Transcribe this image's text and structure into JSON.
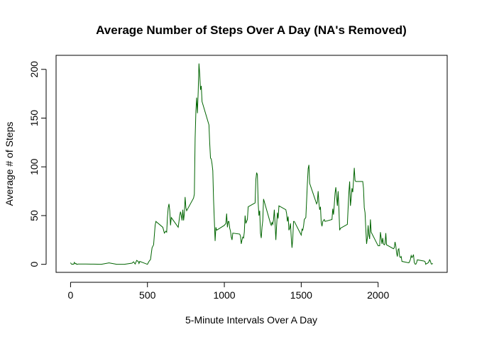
{
  "chart_data": {
    "type": "line",
    "title": "Average Number of Steps Over A Day  (NA's Removed)",
    "xlabel": "5-Minute Intervals Over A Day",
    "ylabel": "Average # of Steps",
    "x": [
      0,
      5,
      10,
      15,
      20,
      25,
      30,
      35,
      40,
      50,
      100,
      150,
      200,
      250,
      300,
      350,
      400,
      410,
      420,
      430,
      440,
      445,
      450,
      500,
      510,
      520,
      530,
      540,
      550,
      555,
      600,
      610,
      620,
      625,
      630,
      635,
      640,
      645,
      650,
      655,
      700,
      705,
      710,
      715,
      720,
      725,
      730,
      735,
      740,
      745,
      750,
      755,
      800,
      805,
      810,
      815,
      820,
      825,
      830,
      835,
      840,
      845,
      850,
      855,
      900,
      905,
      910,
      915,
      920,
      925,
      930,
      935,
      940,
      945,
      950,
      1000,
      1010,
      1015,
      1020,
      1025,
      1030,
      1035,
      1040,
      1045,
      1050,
      1055,
      1100,
      1105,
      1110,
      1115,
      1120,
      1125,
      1130,
      1135,
      1140,
      1145,
      1150,
      1155,
      1200,
      1205,
      1210,
      1215,
      1220,
      1225,
      1230,
      1235,
      1240,
      1245,
      1250,
      1255,
      1300,
      1305,
      1310,
      1315,
      1320,
      1325,
      1330,
      1335,
      1340,
      1345,
      1350,
      1355,
      1400,
      1405,
      1410,
      1415,
      1420,
      1425,
      1430,
      1435,
      1440,
      1445,
      1450,
      1455,
      1500,
      1505,
      1510,
      1515,
      1520,
      1525,
      1530,
      1535,
      1540,
      1545,
      1550,
      1555,
      1600,
      1605,
      1610,
      1615,
      1620,
      1625,
      1630,
      1635,
      1640,
      1645,
      1650,
      1655,
      1700,
      1705,
      1710,
      1715,
      1720,
      1725,
      1730,
      1735,
      1740,
      1745,
      1750,
      1755,
      1800,
      1805,
      1810,
      1815,
      1820,
      1825,
      1830,
      1835,
      1840,
      1845,
      1850,
      1855,
      1900,
      1905,
      1910,
      1915,
      1920,
      1925,
      1930,
      1935,
      1940,
      1945,
      1950,
      1955,
      2000,
      2005,
      2010,
      2015,
      2020,
      2025,
      2030,
      2035,
      2040,
      2045,
      2050,
      2055,
      2100,
      2105,
      2110,
      2115,
      2120,
      2125,
      2130,
      2135,
      2140,
      2145,
      2150,
      2155,
      2200,
      2205,
      2210,
      2215,
      2220,
      2225,
      2230,
      2235,
      2240,
      2245,
      2250,
      2255,
      2300,
      2305,
      2310,
      2315,
      2320,
      2325,
      2330,
      2335,
      2340,
      2345,
      2350,
      2355
    ],
    "series": [
      {
        "name": "Average Steps",
        "color": "#006400",
        "values": [
          1.7,
          0.3,
          0.1,
          0.2,
          0.1,
          2,
          0.5,
          0.9,
          0,
          0.3,
          0.3,
          0.2,
          0,
          1.5,
          0,
          0,
          1.2,
          2.6,
          0.3,
          4,
          3,
          0.9,
          3,
          0,
          3,
          5,
          17,
          20,
          40,
          44,
          38,
          32,
          34,
          33,
          48,
          58,
          62,
          55,
          40,
          48,
          38,
          44,
          50,
          54,
          50,
          45,
          56,
          45,
          52,
          69,
          58,
          55,
          68,
          72,
          129,
          157,
          171,
          155,
          177,
          206,
          195,
          179,
          183,
          167,
          143,
          124,
          109,
          108,
          103,
          96,
          66,
          45,
          24,
          38,
          35,
          40,
          42,
          52,
          38,
          44,
          44,
          37,
          34,
          28,
          25,
          32,
          31,
          29,
          21,
          25,
          28,
          27,
          33,
          50,
          42,
          44,
          46,
          59,
          63,
          87,
          94,
          92,
          63,
          50,
          55,
          32,
          27,
          38,
          45,
          67,
          42,
          40,
          43,
          41,
          46,
          56,
          42,
          25,
          40,
          53,
          47,
          60,
          56,
          52,
          44,
          49,
          35,
          37,
          42,
          28,
          17,
          26,
          44,
          44,
          30,
          36,
          35,
          39,
          46,
          47,
          48,
          65,
          83,
          98,
          102,
          83,
          62,
          64,
          75,
          63,
          56,
          59,
          43,
          39,
          44,
          45,
          46,
          44,
          46,
          57,
          51,
          61,
          73,
          79,
          69,
          60,
          75,
          57,
          35,
          37,
          41,
          58,
          74,
          85,
          60,
          68,
          78,
          74,
          86,
          99,
          86,
          85,
          85,
          78,
          58,
          53,
          36,
          21,
          27,
          40,
          30,
          26,
          46,
          33,
          19,
          19,
          19,
          33,
          27,
          21,
          27,
          21,
          20,
          21,
          32,
          20,
          16,
          17,
          23,
          19,
          12,
          8,
          15,
          16,
          8,
          7,
          8,
          3,
          1.5,
          3,
          5,
          9,
          7,
          8,
          10,
          2,
          0.3,
          0.1,
          1.6,
          4.6,
          3.3,
          2.8,
          0,
          0.8,
          1,
          1.6,
          2.6,
          4.7,
          3.3,
          0.6,
          0.2,
          1.1
        ]
      }
    ],
    "xlim": [
      -94.2,
      2449.2
    ],
    "ylim": [
      -8.25,
      214.4
    ],
    "xticks": [
      0,
      500,
      1000,
      1500,
      2000
    ],
    "yticks": [
      0,
      50,
      100,
      150,
      200
    ]
  }
}
